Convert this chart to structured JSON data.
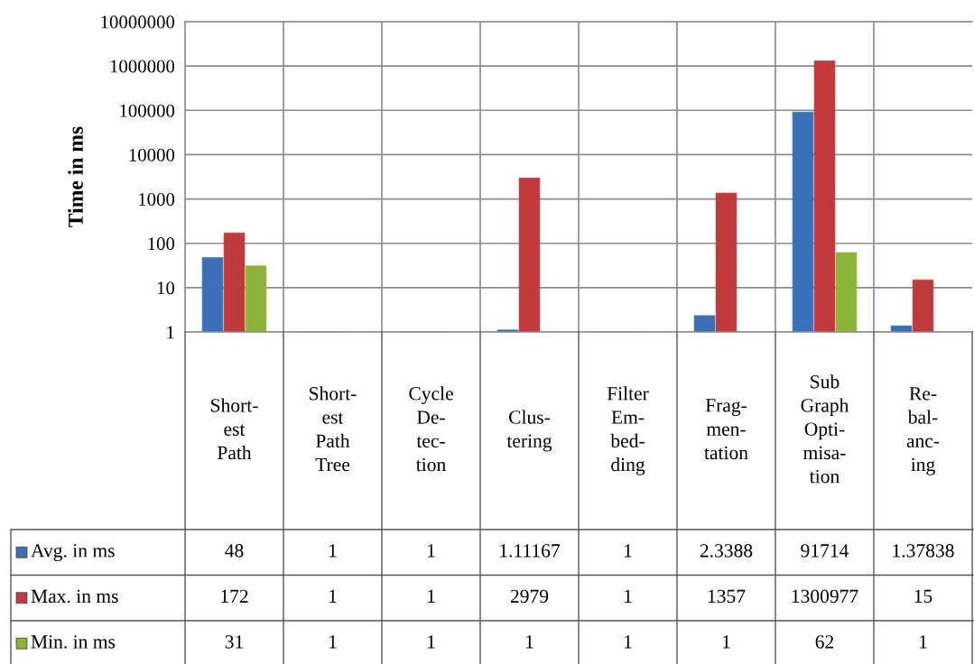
{
  "chart_data": {
    "type": "bar",
    "ylabel": "Time in ms",
    "categories": [
      "Short-\nest\nPath",
      "Short-\nest\nPath\nTree",
      "Cycle\nDe-\ntec-\ntion",
      "Clus-\ntering",
      "Filter\nEm-\nbed-\nding",
      "Frag-\nmen-\ntation",
      "Sub\nGraph\nOpti-\nmisa-\ntion",
      "Re-\nbal-\nanc-\ning"
    ],
    "series": [
      {
        "name": "Avg. in ms",
        "color": "#3a70b8",
        "values": [
          48,
          1,
          1,
          1.11167,
          1,
          2.3388,
          91714,
          1.37838
        ]
      },
      {
        "name": "Max. in ms",
        "color": "#c0393b",
        "values": [
          172,
          1,
          1,
          2979,
          1,
          1357,
          1300977,
          15
        ]
      },
      {
        "name": "Min. in ms",
        "color": "#8db33a",
        "values": [
          31,
          1,
          1,
          1,
          1,
          1,
          62,
          1
        ]
      }
    ],
    "log": true,
    "ylim": [
      1,
      10000000
    ],
    "yticks": [
      1,
      10,
      100,
      1000,
      10000,
      100000,
      1000000,
      10000000
    ],
    "grid": "y",
    "legend": "bottom",
    "data_labels": true
  }
}
